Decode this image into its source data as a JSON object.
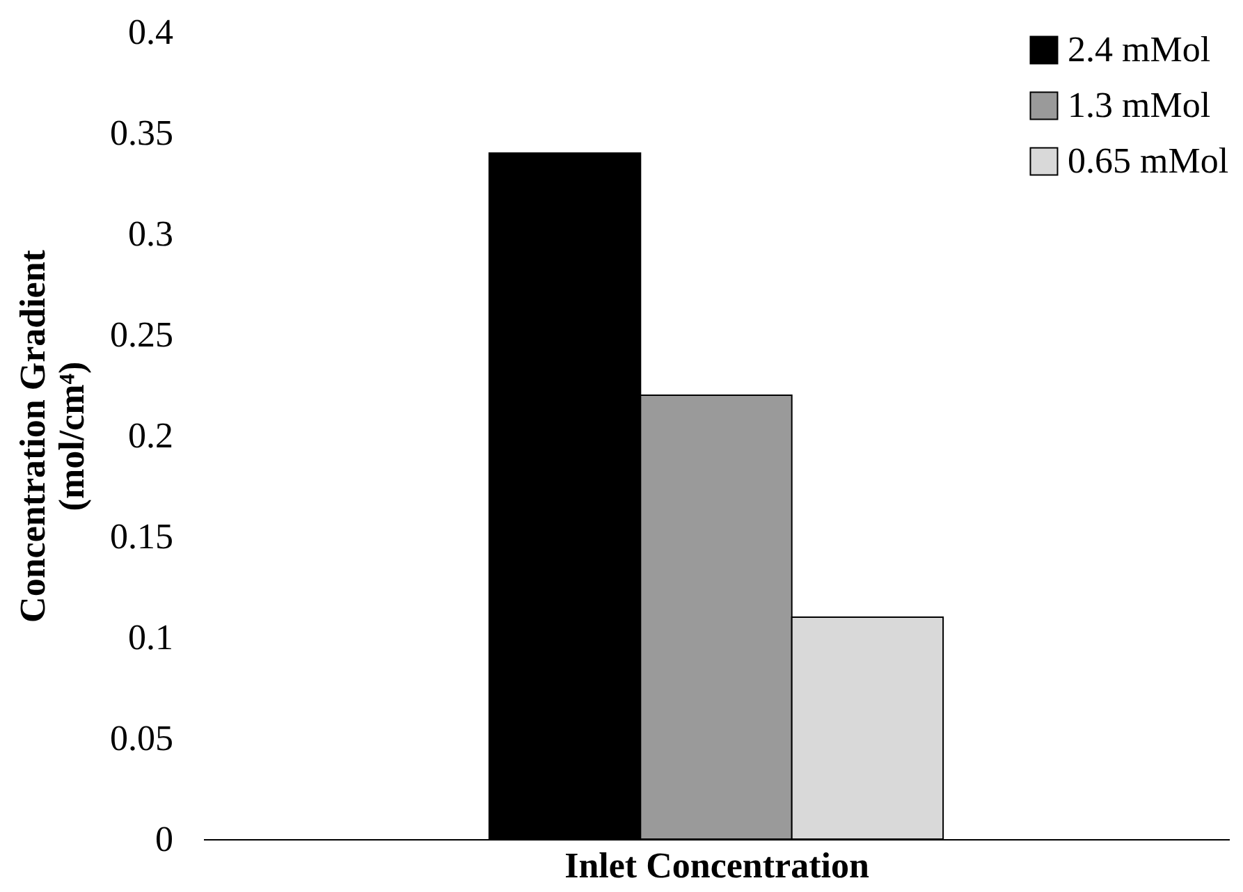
{
  "chart_data": {
    "type": "bar",
    "categories": [
      null
    ],
    "xlabel": "Inlet Concentration",
    "ylabel": "Concentration Gradient\n(mol/cm⁴)",
    "series": [
      {
        "name": "2.4 mMol",
        "color": "#000000",
        "values": [
          0.34
        ]
      },
      {
        "name": "1.3 mMol",
        "color": "#9a9a9a",
        "values": [
          0.22
        ]
      },
      {
        "name": "0.65 mMol",
        "color": "#d9d9d9",
        "values": [
          0.11
        ]
      }
    ],
    "ylim": [
      0,
      0.4
    ],
    "yticks": [
      0,
      0.05,
      0.1,
      0.15,
      0.2,
      0.25,
      0.3,
      0.35,
      0.4
    ],
    "grid": false,
    "legend": "top right"
  }
}
